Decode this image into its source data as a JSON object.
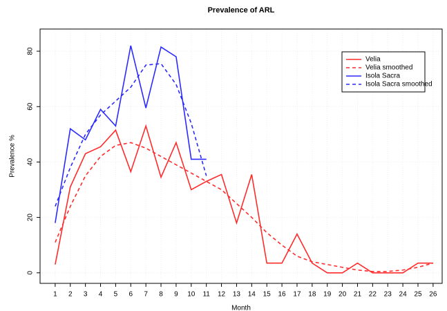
{
  "chart_data": {
    "type": "line",
    "title": "Prevalence of ARL",
    "x_label": "Month",
    "y_label": "Prevalence %",
    "x": [
      1,
      2,
      3,
      4,
      5,
      6,
      7,
      8,
      9,
      10,
      11,
      12,
      13,
      14,
      15,
      16,
      17,
      18,
      19,
      20,
      21,
      22,
      23,
      24,
      25,
      26
    ],
    "series": [
      {
        "name": "Velia",
        "color": "#ff2a2a",
        "style": "solid",
        "values": [
          3,
          31,
          43,
          45.5,
          51.5,
          36.5,
          53,
          34.5,
          47,
          30,
          33,
          35.5,
          18,
          35.5,
          3.5,
          3.5,
          14,
          3.5,
          0,
          0,
          3.5,
          0,
          0,
          0,
          3.5,
          3.5
        ]
      },
      {
        "name": "Velia smoothed",
        "color": "#ff2a2a",
        "style": "dashed",
        "values": [
          11,
          24,
          35,
          42,
          46,
          47,
          45,
          42,
          39,
          36,
          33,
          30,
          25,
          20,
          14.5,
          10,
          6,
          4,
          3,
          2,
          1,
          0.5,
          0.5,
          1,
          2,
          3.5
        ]
      },
      {
        "name": "Isola Sacra",
        "color": "#2a2aff",
        "style": "solid",
        "values": [
          18,
          52,
          48,
          59,
          53,
          82,
          59.5,
          81.5,
          78,
          41,
          41,
          null,
          null,
          null,
          null,
          null,
          null,
          null,
          null,
          null,
          null,
          null,
          null,
          null,
          null,
          null
        ]
      },
      {
        "name": "Isola Sacra smoothed",
        "color": "#2a2aff",
        "style": "dashed",
        "values": [
          24,
          38,
          50,
          57,
          62,
          67,
          75,
          75.5,
          68,
          54,
          35,
          null,
          null,
          null,
          null,
          null,
          null,
          null,
          null,
          null,
          null,
          null,
          null,
          null,
          null,
          null
        ]
      }
    ],
    "xlim": [
      0,
      26.6
    ],
    "xticks": [
      1,
      2,
      3,
      4,
      5,
      6,
      7,
      8,
      9,
      10,
      11,
      12,
      13,
      14,
      15,
      16,
      17,
      18,
      19,
      20,
      21,
      22,
      23,
      24,
      25,
      26
    ],
    "ylim": [
      -3.8,
      88
    ],
    "yticks": [
      0,
      20,
      40,
      60,
      80
    ],
    "grid": true,
    "legend": "top-right"
  }
}
